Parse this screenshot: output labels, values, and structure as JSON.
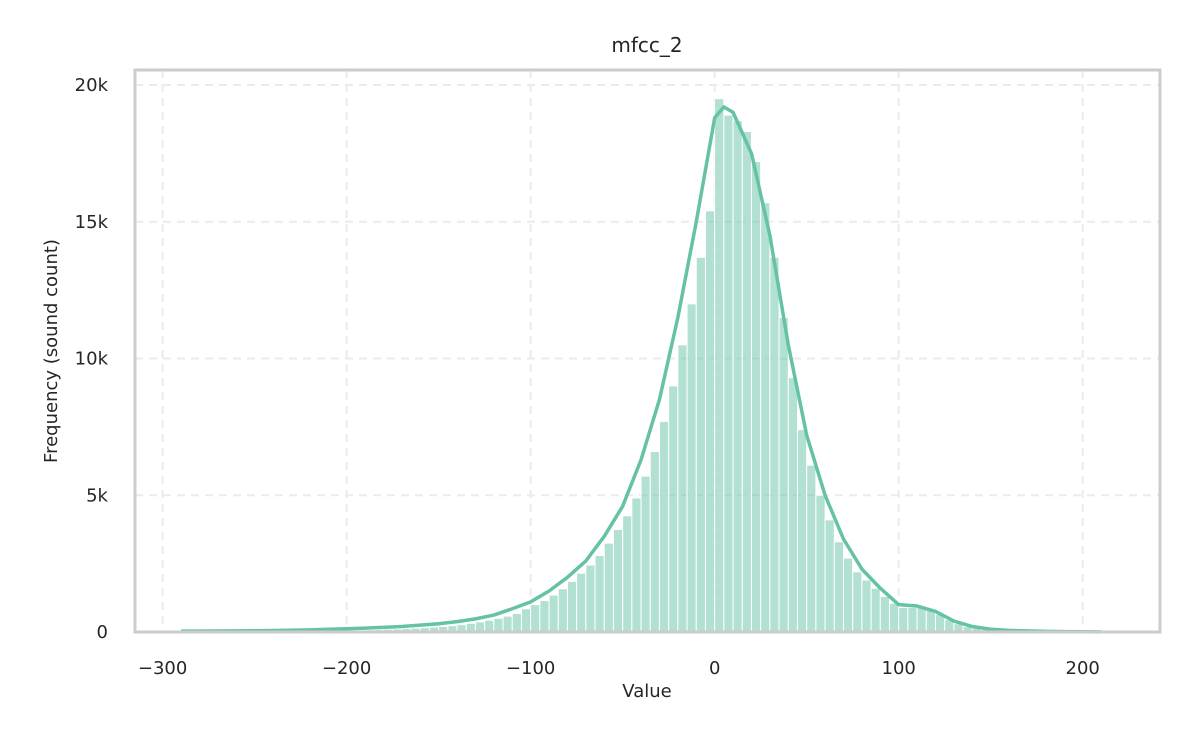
{
  "chart_data": {
    "type": "histogram",
    "title": "mfcc_2",
    "xlabel": "Value",
    "ylabel": "Frequency (sound count)",
    "bins": [
      -290,
      -285,
      -280,
      -275,
      -270,
      -265,
      -260,
      -255,
      -250,
      -245,
      -240,
      -235,
      -230,
      -225,
      -220,
      -215,
      -210,
      -205,
      -200,
      -195,
      -190,
      -185,
      -180,
      -175,
      -170,
      -165,
      -160,
      -155,
      -150,
      -145,
      -140,
      -135,
      -130,
      -125,
      -120,
      -115,
      -110,
      -105,
      -100,
      -95,
      -90,
      -85,
      -80,
      -75,
      -70,
      -65,
      -60,
      -55,
      -50,
      -45,
      -40,
      -35,
      -30,
      -25,
      -20,
      -15,
      -10,
      -5,
      0,
      5,
      10,
      15,
      20,
      25,
      30,
      35,
      40,
      45,
      50,
      55,
      60,
      65,
      70,
      75,
      80,
      85,
      90,
      95,
      100,
      105,
      110,
      115,
      120,
      125,
      130,
      135,
      140,
      145,
      150,
      155,
      160,
      165,
      170,
      175,
      180,
      185,
      190,
      195,
      200,
      205,
      210,
      215
    ],
    "values": [
      10,
      10,
      10,
      15,
      15,
      15,
      20,
      20,
      20,
      25,
      25,
      30,
      30,
      35,
      40,
      45,
      50,
      55,
      60,
      70,
      80,
      90,
      100,
      110,
      125,
      140,
      160,
      180,
      200,
      230,
      270,
      320,
      370,
      430,
      500,
      580,
      680,
      850,
      1000,
      1150,
      1350,
      1580,
      1850,
      2150,
      2450,
      2800,
      3250,
      3750,
      4250,
      4900,
      5700,
      6600,
      7700,
      9000,
      10500,
      12000,
      13700,
      15400,
      19500,
      18900,
      18700,
      18300,
      17200,
      15700,
      13700,
      11500,
      9300,
      7400,
      6100,
      5000,
      4100,
      3300,
      2700,
      2200,
      1900,
      1600,
      1300,
      1050,
      900,
      900,
      950,
      850,
      650,
      450,
      300,
      200,
      140,
      100,
      70,
      50,
      40,
      30,
      25,
      20,
      15,
      10,
      10,
      10,
      5,
      5,
      5
    ],
    "color": "#66c2a5",
    "kde": {
      "color": "#66c2a5",
      "x": [
        -290,
        -280,
        -270,
        -260,
        -250,
        -240,
        -230,
        -220,
        -210,
        -200,
        -190,
        -180,
        -170,
        -160,
        -150,
        -140,
        -130,
        -120,
        -110,
        -100,
        -90,
        -80,
        -70,
        -60,
        -50,
        -40,
        -30,
        -20,
        -10,
        0,
        5,
        10,
        20,
        30,
        40,
        50,
        60,
        70,
        80,
        90,
        100,
        110,
        120,
        130,
        140,
        150,
        160,
        170,
        180,
        190,
        200,
        210
      ],
      "values": [
        30,
        30,
        35,
        40,
        45,
        55,
        65,
        80,
        100,
        120,
        140,
        170,
        200,
        250,
        300,
        380,
        480,
        620,
        850,
        1100,
        1500,
        2000,
        2600,
        3500,
        4600,
        6300,
        8500,
        11500,
        15000,
        18800,
        19200,
        19000,
        17500,
        14500,
        10500,
        7200,
        5000,
        3400,
        2300,
        1600,
        1000,
        950,
        750,
        400,
        200,
        100,
        60,
        40,
        25,
        15,
        10,
        5
      ]
    },
    "xlim": [
      -315,
      242
    ],
    "ylim": [
      0,
      20550
    ],
    "xticks": [
      {
        "value": -300,
        "label": "−300"
      },
      {
        "value": -200,
        "label": "−200"
      },
      {
        "value": -100,
        "label": "−100"
      },
      0,
      100,
      200
    ],
    "yticks": [
      0,
      {
        "value": 5000,
        "label": "5k"
      },
      {
        "value": 10000,
        "label": "10k"
      },
      {
        "value": 15000,
        "label": "15k"
      },
      {
        "value": 20000,
        "label": "20k"
      }
    ],
    "grid": true
  }
}
